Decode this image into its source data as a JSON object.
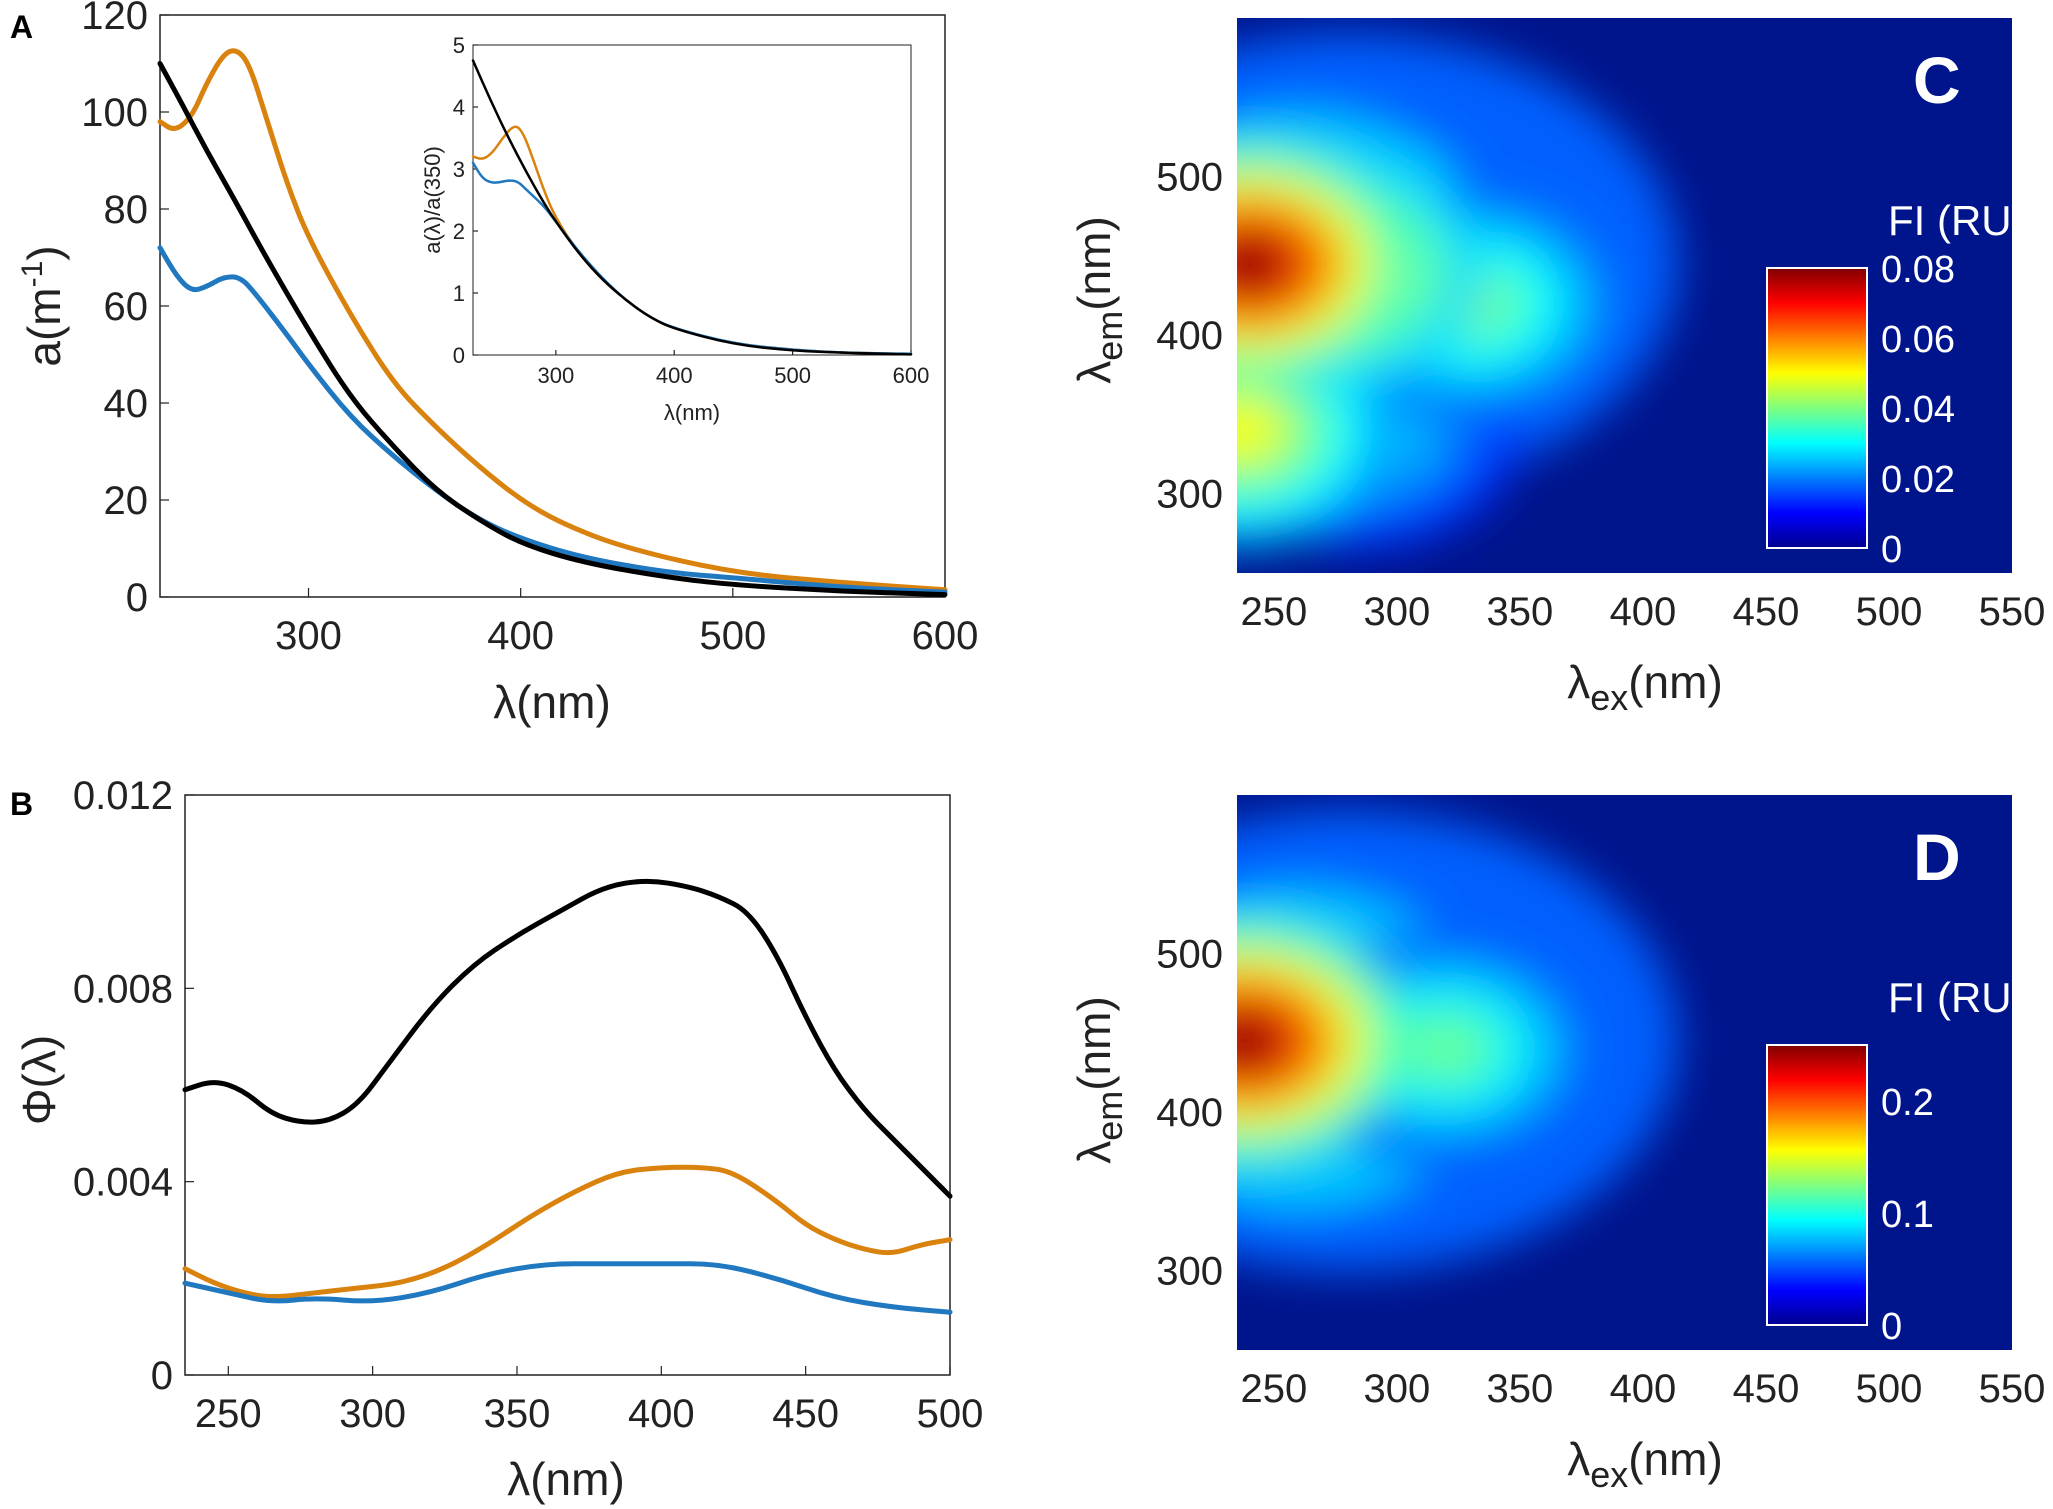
{
  "colors": {
    "orange": "#d9820e",
    "blue": "#1f78c0",
    "black": "#000000",
    "heat_background": "#00148c"
  },
  "chart_data": [
    {
      "panel": "A",
      "type": "line",
      "xlabel": "λ(nm)",
      "ylabel": "a(m-1)",
      "ylabel_base": "a(m",
      "ylabel_sup": "-1",
      "ylabel_close": ")",
      "xlim": [
        230,
        600
      ],
      "ylim": [
        0,
        120
      ],
      "xticks": [
        300,
        400,
        500,
        600
      ],
      "yticks": [
        0,
        20,
        40,
        60,
        80,
        100,
        120
      ],
      "series": [
        {
          "name": "orange",
          "color": "#d9820e",
          "points": [
            [
              230,
              98
            ],
            [
              237,
              96
            ],
            [
              245,
              99
            ],
            [
              252,
              106
            ],
            [
              260,
              112
            ],
            [
              266,
              113
            ],
            [
              272,
              110
            ],
            [
              280,
              99
            ],
            [
              290,
              85
            ],
            [
              300,
              74
            ],
            [
              320,
              58
            ],
            [
              340,
              44
            ],
            [
              360,
              35
            ],
            [
              380,
              27
            ],
            [
              400,
              20
            ],
            [
              420,
              15
            ],
            [
              450,
              10
            ],
            [
              500,
              5
            ],
            [
              550,
              3
            ],
            [
              600,
              1.5
            ]
          ]
        },
        {
          "name": "blue",
          "color": "#1f78c0",
          "points": [
            [
              230,
              72
            ],
            [
              238,
              66
            ],
            [
              245,
              63
            ],
            [
              252,
              64
            ],
            [
              260,
              66
            ],
            [
              268,
              66
            ],
            [
              276,
              62
            ],
            [
              290,
              54
            ],
            [
              300,
              48
            ],
            [
              320,
              37
            ],
            [
              340,
              29
            ],
            [
              360,
              22
            ],
            [
              380,
              16
            ],
            [
              400,
              12
            ],
            [
              430,
              8
            ],
            [
              470,
              5
            ],
            [
              500,
              4
            ],
            [
              550,
              2
            ],
            [
              600,
              1
            ]
          ]
        },
        {
          "name": "black",
          "color": "#000000",
          "points": [
            [
              230,
              110
            ],
            [
              240,
              102
            ],
            [
              252,
              92
            ],
            [
              265,
              82
            ],
            [
              280,
              70
            ],
            [
              300,
              55
            ],
            [
              320,
              41
            ],
            [
              340,
              31
            ],
            [
              360,
              22
            ],
            [
              380,
              16
            ],
            [
              400,
              11
            ],
            [
              430,
              7
            ],
            [
              470,
              4
            ],
            [
              500,
              2.5
            ],
            [
              550,
              1.2
            ],
            [
              600,
              0.5
            ]
          ]
        }
      ],
      "inset": {
        "type": "line",
        "xlabel": "λ(nm)",
        "ylabel": "a(λ)/a(350)",
        "xlim": [
          230,
          600
        ],
        "ylim": [
          0,
          5
        ],
        "xticks": [
          300,
          400,
          500,
          600
        ],
        "yticks": [
          0,
          1,
          2,
          3,
          4,
          5
        ],
        "series": [
          {
            "name": "orange",
            "color": "#d9820e",
            "points": [
              [
                230,
                3.2
              ],
              [
                238,
                3.15
              ],
              [
                246,
                3.25
              ],
              [
                255,
                3.5
              ],
              [
                265,
                3.72
              ],
              [
                272,
                3.6
              ],
              [
                280,
                3.2
              ],
              [
                290,
                2.65
              ],
              [
                300,
                2.2
              ],
              [
                320,
                1.62
              ],
              [
                340,
                1.2
              ],
              [
                360,
                0.87
              ],
              [
                380,
                0.6
              ],
              [
                400,
                0.42
              ],
              [
                450,
                0.18
              ],
              [
                500,
                0.08
              ],
              [
                550,
                0.03
              ],
              [
                600,
                0.02
              ]
            ]
          },
          {
            "name": "blue",
            "color": "#1f78c0",
            "points": [
              [
                230,
                3.1
              ],
              [
                238,
                2.85
              ],
              [
                245,
                2.78
              ],
              [
                252,
                2.78
              ],
              [
                260,
                2.82
              ],
              [
                268,
                2.8
              ],
              [
                276,
                2.65
              ],
              [
                290,
                2.4
              ],
              [
                300,
                2.15
              ],
              [
                320,
                1.65
              ],
              [
                340,
                1.22
              ],
              [
                360,
                0.87
              ],
              [
                380,
                0.6
              ],
              [
                400,
                0.43
              ],
              [
                450,
                0.18
              ],
              [
                500,
                0.08
              ],
              [
                550,
                0.03
              ],
              [
                600,
                0.02
              ]
            ]
          },
          {
            "name": "black",
            "color": "#000000",
            "points": [
              [
                230,
                4.75
              ],
              [
                245,
                4.1
              ],
              [
                260,
                3.5
              ],
              [
                275,
                2.95
              ],
              [
                290,
                2.45
              ],
              [
                300,
                2.15
              ],
              [
                320,
                1.62
              ],
              [
                340,
                1.2
              ],
              [
                360,
                0.87
              ],
              [
                380,
                0.6
              ],
              [
                400,
                0.42
              ],
              [
                450,
                0.17
              ],
              [
                500,
                0.07
              ],
              [
                550,
                0.03
              ],
              [
                600,
                0.01
              ]
            ]
          }
        ]
      }
    },
    {
      "panel": "B",
      "type": "line",
      "xlabel": "λ(nm)",
      "ylabel": "Φ(λ)",
      "xlim": [
        235,
        500
      ],
      "ylim": [
        0,
        0.012
      ],
      "xticks": [
        250,
        300,
        350,
        400,
        450,
        500
      ],
      "yticks": [
        0,
        0.004,
        0.008,
        0.012
      ],
      "ytick_labels": [
        "0",
        "0.004",
        "0.008",
        "0.012"
      ],
      "series": [
        {
          "name": "black",
          "color": "#000000",
          "points": [
            [
              235,
              0.0059
            ],
            [
              245,
              0.0061
            ],
            [
              255,
              0.0059
            ],
            [
              265,
              0.0054
            ],
            [
              275,
              0.00522
            ],
            [
              285,
              0.00525
            ],
            [
              295,
              0.0056
            ],
            [
              305,
              0.0064
            ],
            [
              320,
              0.0076
            ],
            [
              335,
              0.0085
            ],
            [
              350,
              0.0091
            ],
            [
              365,
              0.0096
            ],
            [
              380,
              0.0101
            ],
            [
              395,
              0.01025
            ],
            [
              410,
              0.0101
            ],
            [
              420,
              0.0099
            ],
            [
              430,
              0.0096
            ],
            [
              440,
              0.0087
            ],
            [
              450,
              0.0074
            ],
            [
              460,
              0.0063
            ],
            [
              470,
              0.0055
            ],
            [
              480,
              0.0049
            ],
            [
              490,
              0.0043
            ],
            [
              500,
              0.0037
            ]
          ]
        },
        {
          "name": "orange",
          "color": "#d9820e",
          "points": [
            [
              235,
              0.0022
            ],
            [
              245,
              0.0019
            ],
            [
              255,
              0.0017
            ],
            [
              265,
              0.0016
            ],
            [
              280,
              0.0017
            ],
            [
              295,
              0.0018
            ],
            [
              310,
              0.0019
            ],
            [
              325,
              0.0022
            ],
            [
              340,
              0.0027
            ],
            [
              355,
              0.0033
            ],
            [
              370,
              0.0038
            ],
            [
              385,
              0.0042
            ],
            [
              400,
              0.0043
            ],
            [
              415,
              0.0043
            ],
            [
              425,
              0.0042
            ],
            [
              440,
              0.0036
            ],
            [
              450,
              0.0031
            ],
            [
              460,
              0.0028
            ],
            [
              470,
              0.0026
            ],
            [
              480,
              0.0025
            ],
            [
              490,
              0.0027
            ],
            [
              500,
              0.0028
            ]
          ]
        },
        {
          "name": "blue",
          "color": "#1f78c0",
          "points": [
            [
              235,
              0.0019
            ],
            [
              250,
              0.0017
            ],
            [
              265,
              0.0015
            ],
            [
              280,
              0.0016
            ],
            [
              300,
              0.0015
            ],
            [
              320,
              0.0017
            ],
            [
              340,
              0.0021
            ],
            [
              360,
              0.0023
            ],
            [
              380,
              0.0023
            ],
            [
              400,
              0.0023
            ],
            [
              420,
              0.0023
            ],
            [
              440,
              0.002
            ],
            [
              460,
              0.0016
            ],
            [
              480,
              0.0014
            ],
            [
              500,
              0.0013
            ]
          ]
        }
      ]
    },
    {
      "panel": "C",
      "type": "heatmap",
      "xlabel": "λex(nm)",
      "xlabel_base": "λ",
      "xlabel_sub": "ex",
      "xlabel_unit": "(nm)",
      "ylabel_base": "λ",
      "ylabel_sub": "em",
      "ylabel_unit": "(nm)",
      "xlim": [
        235,
        550
      ],
      "ylim": [
        250,
        600
      ],
      "xticks": [
        250,
        300,
        350,
        400,
        450,
        500,
        550
      ],
      "yticks": [
        300,
        400,
        500
      ],
      "colorbar": {
        "title": "FI (RU)",
        "range": [
          0,
          0.08
        ],
        "ticks": [
          "0",
          "0.02",
          "0.04",
          "0.06",
          "0.08"
        ]
      },
      "peaks": [
        {
          "ex": 240,
          "em": 445,
          "value": 0.08
        },
        {
          "ex": 270,
          "em": 440,
          "value": 0.06
        },
        {
          "ex": 330,
          "em": 420,
          "value": 0.04
        },
        {
          "ex": 265,
          "em": 360,
          "value": 0.025
        },
        {
          "ex": 285,
          "em": 340,
          "value": 0.03
        },
        {
          "ex": 236,
          "em": 340,
          "value": 0.05
        }
      ]
    },
    {
      "panel": "D",
      "type": "heatmap",
      "xlabel": "λex(nm)",
      "xlabel_base": "λ",
      "xlabel_sub": "ex",
      "xlabel_unit": "(nm)",
      "ylabel_base": "λ",
      "ylabel_sub": "em",
      "ylabel_unit": "(nm)",
      "xlim": [
        235,
        550
      ],
      "ylim": [
        250,
        600
      ],
      "xticks": [
        250,
        300,
        350,
        400,
        450,
        500,
        550
      ],
      "yticks": [
        300,
        400,
        500
      ],
      "colorbar": {
        "title": "FI (RU)",
        "range": [
          0,
          0.25
        ],
        "ticks": [
          "0",
          "0.1",
          "0.2"
        ]
      },
      "peaks": [
        {
          "ex": 238,
          "em": 445,
          "value": 0.25
        },
        {
          "ex": 320,
          "em": 440,
          "value": 0.12
        }
      ]
    }
  ]
}
